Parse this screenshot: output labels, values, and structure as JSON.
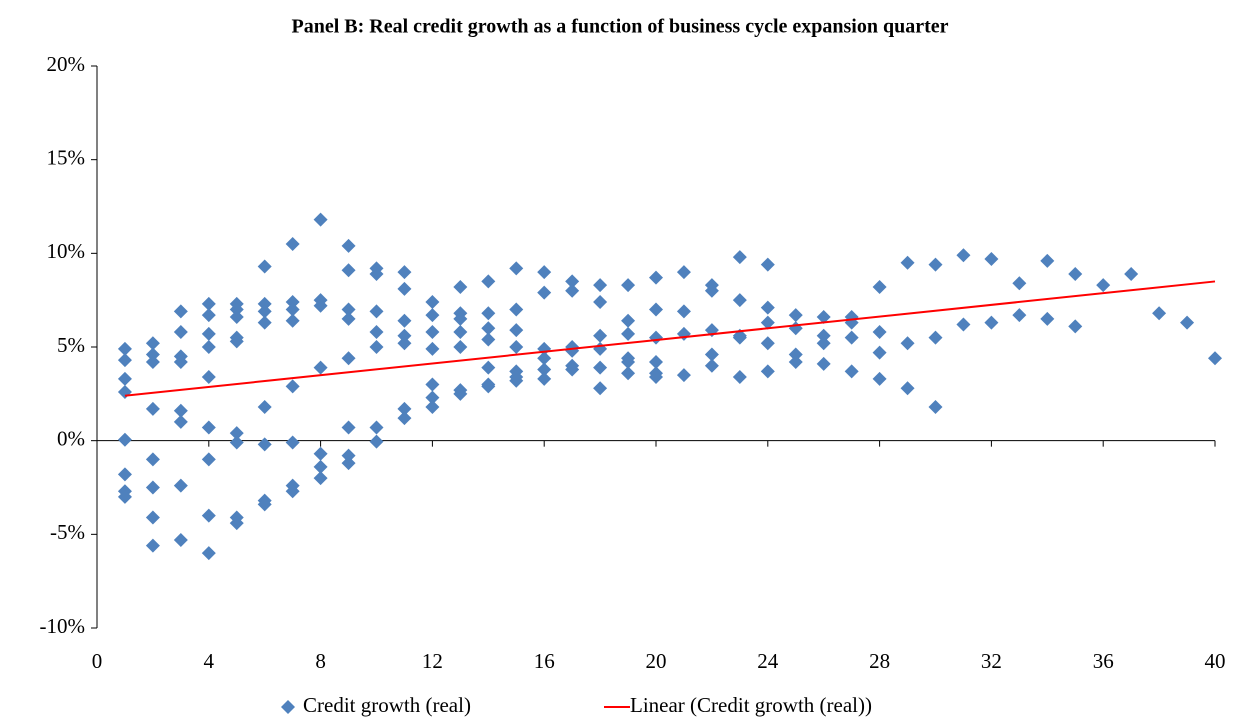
{
  "chart_data": {
    "type": "scatter",
    "title": "Panel B: Real credit growth as a function of business cycle expansion quarter",
    "series": [
      {
        "name": "Credit growth (real)",
        "color": "#4f81bd",
        "marker": "diamond",
        "x": [
          1,
          1,
          1,
          1,
          1,
          1,
          1,
          1,
          2,
          2,
          2,
          2,
          2,
          2,
          2,
          2,
          3,
          3,
          3,
          3,
          3,
          3,
          3,
          3,
          4,
          4,
          4,
          4,
          4,
          4,
          4,
          4,
          4,
          5,
          5,
          5,
          5,
          5,
          5,
          5,
          5,
          5,
          6,
          6,
          6,
          6,
          6,
          6,
          6,
          6,
          7,
          7,
          7,
          7,
          7,
          7,
          7,
          7,
          8,
          8,
          8,
          8,
          8,
          8,
          8,
          9,
          9,
          9,
          9,
          9,
          9,
          9,
          9,
          10,
          10,
          10,
          10,
          10,
          10,
          10,
          11,
          11,
          11,
          11,
          11,
          11,
          11,
          12,
          12,
          12,
          12,
          12,
          12,
          12,
          13,
          13,
          13,
          13,
          13,
          13,
          13,
          14,
          14,
          14,
          14,
          14,
          14,
          14,
          15,
          15,
          15,
          15,
          15,
          15,
          15,
          16,
          16,
          16,
          16,
          16,
          16,
          17,
          17,
          17,
          17,
          17,
          17,
          18,
          18,
          18,
          18,
          18,
          18,
          19,
          19,
          19,
          19,
          19,
          19,
          20,
          20,
          20,
          20,
          20,
          20,
          21,
          21,
          21,
          21,
          22,
          22,
          22,
          22,
          22,
          23,
          23,
          23,
          23,
          23,
          24,
          24,
          24,
          24,
          24,
          25,
          25,
          25,
          25,
          26,
          26,
          26,
          26,
          27,
          27,
          27,
          27,
          28,
          28,
          28,
          28,
          29,
          29,
          29,
          30,
          30,
          30,
          31,
          31,
          32,
          32,
          33,
          33,
          34,
          34,
          35,
          35,
          36,
          37,
          38,
          39,
          40
        ],
        "values": [
          4.9,
          4.3,
          3.3,
          2.6,
          0.05,
          -1.8,
          -2.7,
          -3.0,
          5.2,
          4.6,
          4.2,
          1.7,
          -1.0,
          -2.5,
          -4.1,
          -5.6,
          6.9,
          5.8,
          4.5,
          4.2,
          1.6,
          1.0,
          -2.4,
          -5.3,
          7.3,
          6.7,
          5.7,
          5.0,
          3.4,
          0.7,
          -1.0,
          -4.0,
          -6.0,
          7.3,
          7.0,
          6.6,
          5.5,
          5.3,
          0.4,
          -0.1,
          -4.1,
          -4.4,
          9.3,
          7.3,
          6.9,
          6.3,
          1.8,
          -0.2,
          -3.2,
          -3.4,
          10.5,
          7.4,
          7.0,
          6.4,
          2.9,
          -0.1,
          -2.4,
          -2.7,
          11.8,
          7.5,
          7.2,
          3.9,
          -0.7,
          -1.4,
          -2.0,
          10.4,
          9.1,
          7.0,
          6.5,
          4.4,
          0.7,
          -0.8,
          -1.2,
          9.2,
          8.9,
          6.9,
          5.8,
          5.0,
          0.7,
          -0.05,
          9.0,
          8.1,
          6.4,
          5.6,
          5.2,
          1.7,
          1.2,
          7.4,
          6.7,
          5.8,
          4.9,
          3.0,
          2.3,
          1.8,
          8.2,
          6.8,
          6.5,
          5.8,
          5.0,
          2.7,
          2.5,
          8.5,
          6.8,
          6.0,
          5.4,
          3.9,
          3.0,
          2.9,
          9.2,
          7.0,
          5.9,
          5.0,
          3.7,
          3.4,
          3.2,
          9.0,
          7.9,
          4.9,
          4.4,
          3.8,
          3.3,
          8.5,
          8.0,
          5.0,
          4.8,
          4.0,
          3.8,
          8.3,
          7.4,
          5.6,
          4.9,
          3.9,
          2.8,
          8.3,
          6.4,
          5.7,
          4.4,
          4.2,
          3.6,
          8.7,
          7.0,
          5.5,
          4.2,
          3.6,
          3.4,
          9.0,
          6.9,
          5.7,
          3.5,
          8.3,
          8.0,
          5.9,
          4.6,
          4.0,
          9.8,
          7.5,
          5.6,
          5.5,
          3.4,
          9.4,
          7.1,
          6.3,
          5.2,
          3.7,
          6.7,
          6.0,
          4.6,
          4.2,
          6.6,
          5.6,
          5.2,
          4.1,
          6.6,
          6.3,
          5.5,
          3.7,
          8.2,
          5.8,
          4.7,
          3.3,
          9.5,
          5.2,
          2.8,
          9.4,
          5.5,
          1.8,
          9.9,
          6.2,
          9.7,
          6.3,
          8.4,
          6.7,
          9.6,
          6.5,
          8.9,
          6.1,
          8.3,
          8.9,
          6.8,
          6.3,
          4.4
        ]
      },
      {
        "name": "Linear (Credit growth (real))",
        "color": "#ff0000",
        "marker": "line",
        "x": [
          1,
          40
        ],
        "values": [
          2.4,
          8.5
        ]
      }
    ],
    "xlim": [
      0,
      40
    ],
    "xticks": [
      0,
      4,
      8,
      12,
      16,
      20,
      24,
      28,
      32,
      36,
      40
    ],
    "ylim": [
      -10,
      20
    ],
    "yticks": [
      {
        "value": -10,
        "label": "-10%"
      },
      {
        "value": -5,
        "label": "-5%"
      },
      {
        "value": 0,
        "label": "0%"
      },
      {
        "value": 5,
        "label": "5%"
      },
      {
        "value": 10,
        "label": "10%"
      },
      {
        "value": 15,
        "label": "15%"
      },
      {
        "value": 20,
        "label": "20%"
      }
    ],
    "grid": false,
    "legend": "bottom"
  }
}
